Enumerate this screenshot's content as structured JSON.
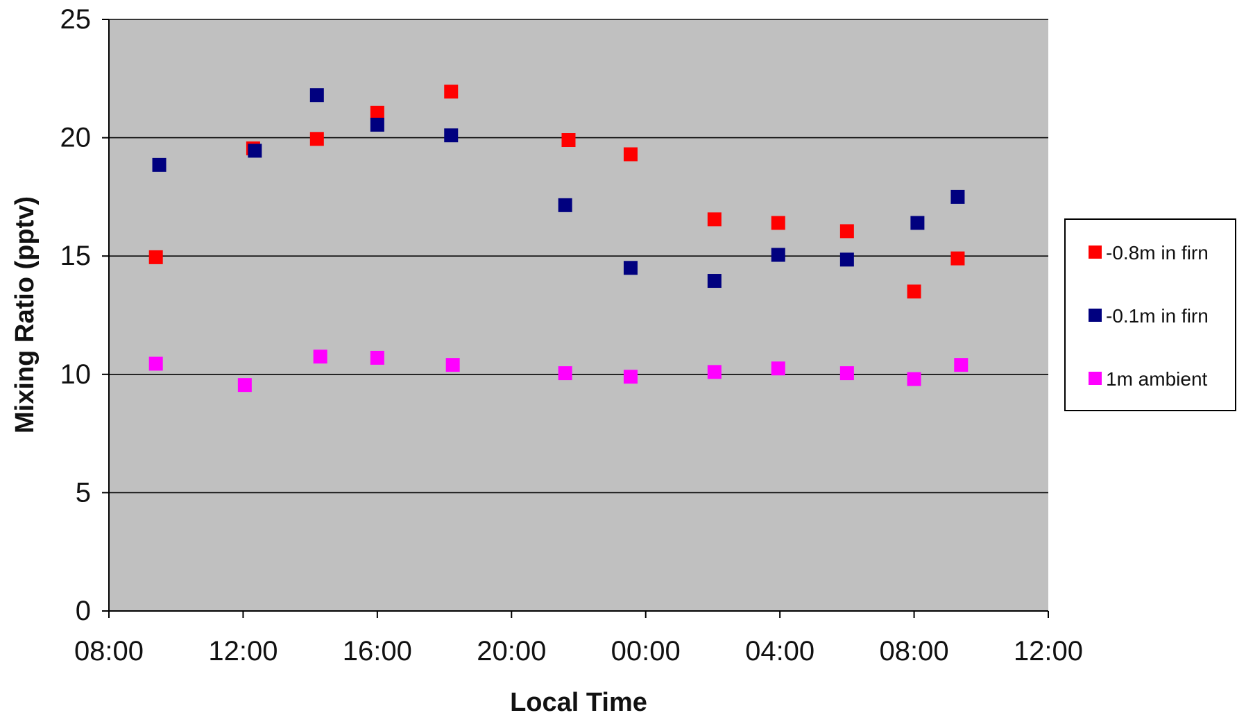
{
  "chart_data": {
    "type": "scatter",
    "title": "",
    "xlabel": "Local Time",
    "ylabel": "Mixing Ratio (pptv)",
    "x_ticks": [
      "08:00",
      "12:00",
      "16:00",
      "20:00",
      "00:00",
      "04:00",
      "08:00",
      "12:00"
    ],
    "xlim_hours": [
      0,
      28
    ],
    "ylim": [
      0,
      25
    ],
    "y_ticks": [
      0,
      5,
      10,
      15,
      20,
      25
    ],
    "grid": "horizontal",
    "plot_background": "#c0c0c0",
    "legend_position": "right",
    "series": [
      {
        "name": "-0.8m in firn",
        "color": "#ff0000",
        "points": [
          {
            "x": 1.4,
            "y": 14.95
          },
          {
            "x": 4.3,
            "y": 19.55
          },
          {
            "x": 6.2,
            "y": 19.95
          },
          {
            "x": 8.0,
            "y": 21.05
          },
          {
            "x": 10.2,
            "y": 21.95
          },
          {
            "x": 13.7,
            "y": 19.9
          },
          {
            "x": 15.55,
            "y": 19.3
          },
          {
            "x": 18.05,
            "y": 16.55
          },
          {
            "x": 19.95,
            "y": 16.4
          },
          {
            "x": 22.0,
            "y": 16.05
          },
          {
            "x": 24.0,
            "y": 13.5
          },
          {
            "x": 25.3,
            "y": 14.9
          }
        ]
      },
      {
        "name": "-0.1m in firn",
        "color": "#00007f",
        "points": [
          {
            "x": 1.5,
            "y": 18.85
          },
          {
            "x": 4.35,
            "y": 19.45
          },
          {
            "x": 6.2,
            "y": 21.8
          },
          {
            "x": 8.0,
            "y": 20.55
          },
          {
            "x": 10.2,
            "y": 20.1
          },
          {
            "x": 13.6,
            "y": 17.15
          },
          {
            "x": 15.55,
            "y": 14.5
          },
          {
            "x": 18.05,
            "y": 13.95
          },
          {
            "x": 19.95,
            "y": 15.05
          },
          {
            "x": 22.0,
            "y": 14.85
          },
          {
            "x": 24.1,
            "y": 16.4
          },
          {
            "x": 25.3,
            "y": 17.5
          }
        ]
      },
      {
        "name": "1m ambient",
        "color": "#ff00ff",
        "points": [
          {
            "x": 1.4,
            "y": 10.45
          },
          {
            "x": 4.05,
            "y": 9.55
          },
          {
            "x": 6.3,
            "y": 10.75
          },
          {
            "x": 8.0,
            "y": 10.7
          },
          {
            "x": 10.25,
            "y": 10.4
          },
          {
            "x": 13.6,
            "y": 10.05
          },
          {
            "x": 15.55,
            "y": 9.9
          },
          {
            "x": 18.05,
            "y": 10.1
          },
          {
            "x": 19.95,
            "y": 10.25
          },
          {
            "x": 22.0,
            "y": 10.05
          },
          {
            "x": 24.0,
            "y": 9.8
          },
          {
            "x": 25.4,
            "y": 10.4
          }
        ]
      }
    ]
  }
}
